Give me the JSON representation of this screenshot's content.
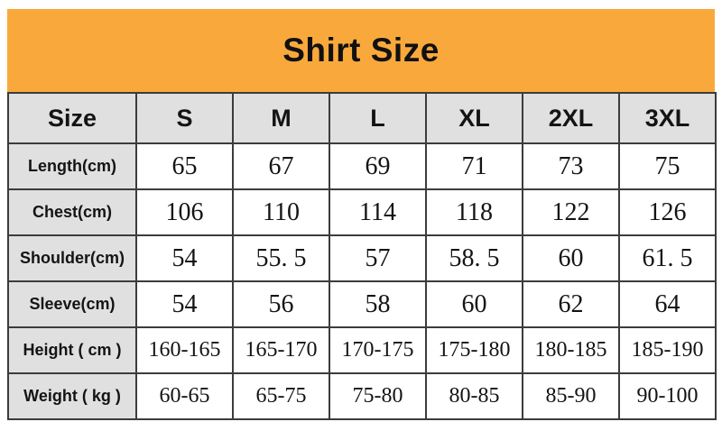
{
  "title": "Shirt Size",
  "colors": {
    "banner_orange": "#F9A93C",
    "header_gray": "#E0E0E0",
    "border_dark": "#3C3C3C",
    "text_black": "#141414"
  },
  "table": {
    "corner_label": "Size",
    "columns": [
      "S",
      "M",
      "L",
      "XL",
      "2XL",
      "3XL"
    ],
    "rows": [
      {
        "label": "Length(cm)",
        "values": [
          "65",
          "67",
          "69",
          "71",
          "73",
          "75"
        ]
      },
      {
        "label": "Chest(cm)",
        "values": [
          "106",
          "110",
          "114",
          "118",
          "122",
          "126"
        ]
      },
      {
        "label": "Shoulder(cm)",
        "values": [
          "54",
          "55. 5",
          "57",
          "58. 5",
          "60",
          "61. 5"
        ]
      },
      {
        "label": "Sleeve(cm)",
        "values": [
          "54",
          "56",
          "58",
          "60",
          "62",
          "64"
        ]
      },
      {
        "label": "Height ( cm )",
        "values": [
          "160-165",
          "165-170",
          "170-175",
          "175-180",
          "180-185",
          "185-190"
        ]
      },
      {
        "label": "Weight ( kg )",
        "values": [
          "60-65",
          "65-75",
          "75-80",
          "80-85",
          "85-90",
          "90-100"
        ]
      }
    ]
  },
  "chart_data": {
    "type": "table",
    "title": "Shirt Size",
    "columns": [
      "Size",
      "S",
      "M",
      "L",
      "XL",
      "2XL",
      "3XL"
    ],
    "rows": [
      [
        "Length(cm)",
        "65",
        "67",
        "69",
        "71",
        "73",
        "75"
      ],
      [
        "Chest(cm)",
        "106",
        "110",
        "114",
        "118",
        "122",
        "126"
      ],
      [
        "Shoulder(cm)",
        "54",
        "55.5",
        "57",
        "58.5",
        "60",
        "61.5"
      ],
      [
        "Sleeve(cm)",
        "54",
        "56",
        "58",
        "60",
        "62",
        "64"
      ],
      [
        "Height ( cm )",
        "160-165",
        "165-170",
        "170-175",
        "175-180",
        "180-185",
        "185-190"
      ],
      [
        "Weight ( kg )",
        "60-65",
        "65-75",
        "75-80",
        "80-85",
        "85-90",
        "90-100"
      ]
    ]
  }
}
